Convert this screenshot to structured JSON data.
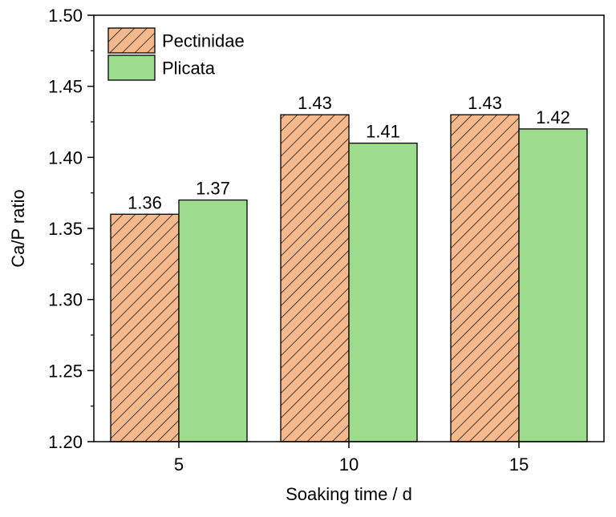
{
  "chart_data": {
    "type": "bar",
    "categories": [
      "5",
      "10",
      "15"
    ],
    "series": [
      {
        "name": "Pectinidae",
        "values": [
          1.36,
          1.43,
          1.43
        ],
        "value_labels": [
          "1.36",
          "1.43",
          "1.43"
        ],
        "color": "#f6b98d",
        "pattern": "hatch"
      },
      {
        "name": "Plicata",
        "values": [
          1.37,
          1.41,
          1.42
        ],
        "value_labels": [
          "1.37",
          "1.41",
          "1.42"
        ],
        "color": "#9cdc8c",
        "pattern": "solid"
      }
    ],
    "xlabel": "Soaking time / d",
    "ylabel": "Ca/P ratio",
    "ylim": [
      1.2,
      1.5
    ],
    "yticks": [
      "1.20",
      "1.25",
      "1.30",
      "1.35",
      "1.40",
      "1.45",
      "1.50"
    ],
    "grid": false,
    "legend_position": "top-left"
  }
}
